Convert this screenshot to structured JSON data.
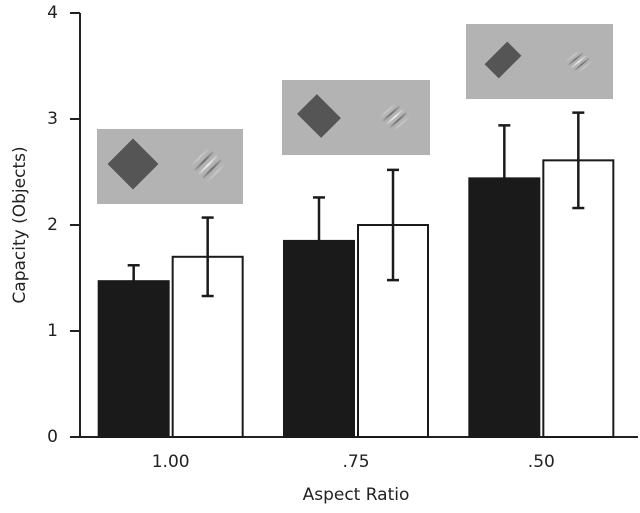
{
  "chart_data": {
    "type": "bar",
    "y_label": "Capacity (Objects)",
    "x_label": "Aspect Ratio",
    "categories": [
      "1.00",
      ".75",
      ".50"
    ],
    "series": [
      {
        "color": "#1a1a1a",
        "values": [
          1.47,
          1.85,
          2.44
        ],
        "errors": [
          0.15,
          0.41,
          0.5
        ]
      },
      {
        "color": "#ffffff",
        "values": [
          1.7,
          2.0,
          2.61
        ],
        "errors": [
          0.37,
          0.52,
          0.45
        ]
      }
    ],
    "ylim": [
      0,
      4
    ],
    "yticks": [
      0,
      1,
      2,
      3,
      4
    ],
    "grid": false
  }
}
